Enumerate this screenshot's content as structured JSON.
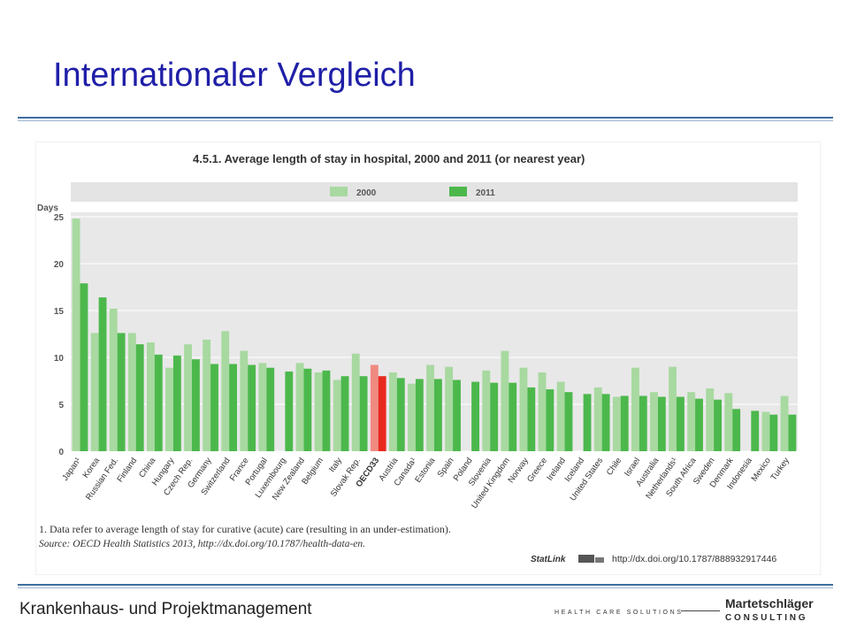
{
  "slide": {
    "title": "Internationaler Vergleich",
    "footer": "Krankenhaus- und Projektmanagement",
    "tagline": "HEALTH CARE SOLUTIONS",
    "logo_brand": "Martetschläger",
    "logo_sub": "CONSULTING"
  },
  "chart_data": {
    "type": "bar",
    "title": "4.5.1. Average length of stay in hospital, 2000 and 2011 (or nearest year)",
    "ylabel": "Days",
    "ylim": [
      0,
      25
    ],
    "yticks": [
      0,
      5,
      10,
      15,
      20,
      25
    ],
    "grid": true,
    "legend_position": "top",
    "categories": [
      "Japan¹",
      "Korea",
      "Russian Fed.",
      "Finland",
      "China",
      "Hungary",
      "Czech Rep.",
      "Germany",
      "Switzerland",
      "France",
      "Portugal",
      "Luxembourg",
      "New Zealand",
      "Belgium",
      "Italy",
      "Slovak Rep.",
      "OECD33",
      "Austria",
      "Canada¹",
      "Estonia",
      "Spain",
      "Poland",
      "Slovenia",
      "United Kingdom",
      "Norway",
      "Greece",
      "Ireland",
      "Iceland",
      "United States",
      "Chile",
      "Israel",
      "Australia",
      "Netherlands¹",
      "South Africa",
      "Sweden",
      "Denmark",
      "Indonesia",
      "Mexico",
      "Turkey"
    ],
    "highlight_category": "OECD33",
    "series": [
      {
        "name": "2000",
        "color": "#a8d9a0",
        "highlight_color": "#f08a80",
        "values": [
          24.8,
          12.6,
          15.2,
          12.6,
          11.6,
          8.9,
          11.4,
          11.9,
          12.8,
          10.7,
          9.4,
          null,
          9.4,
          8.4,
          7.6,
          10.4,
          9.2,
          8.4,
          7.2,
          9.2,
          9.0,
          null,
          8.6,
          10.7,
          8.9,
          8.4,
          7.4,
          null,
          6.8,
          5.8,
          8.9,
          6.3,
          9.0,
          6.3,
          6.7,
          6.2,
          null,
          4.2,
          5.9
        ]
      },
      {
        "name": "2011",
        "color": "#4cb84c",
        "highlight_color": "#e8291e",
        "values": [
          17.9,
          16.4,
          12.6,
          11.4,
          10.3,
          10.2,
          9.8,
          9.3,
          9.3,
          9.2,
          8.9,
          8.5,
          8.8,
          8.6,
          8.0,
          8.0,
          8.0,
          7.8,
          7.7,
          7.7,
          7.6,
          7.4,
          7.3,
          7.3,
          6.8,
          6.6,
          6.3,
          6.1,
          6.1,
          5.9,
          5.9,
          5.8,
          5.8,
          5.6,
          5.5,
          4.5,
          4.3,
          3.9,
          3.9
        ]
      }
    ],
    "footnote": "1. Data refer to average length of stay for curative (acute) care (resulting in an under-estimation).",
    "source": "Source: OECD Health Statistics 2013, http://dx.doi.org/10.1787/health-data-en.",
    "statlink_label": "StatLink",
    "statlink_url": "http://dx.doi.org/10.1787/888932917446"
  }
}
